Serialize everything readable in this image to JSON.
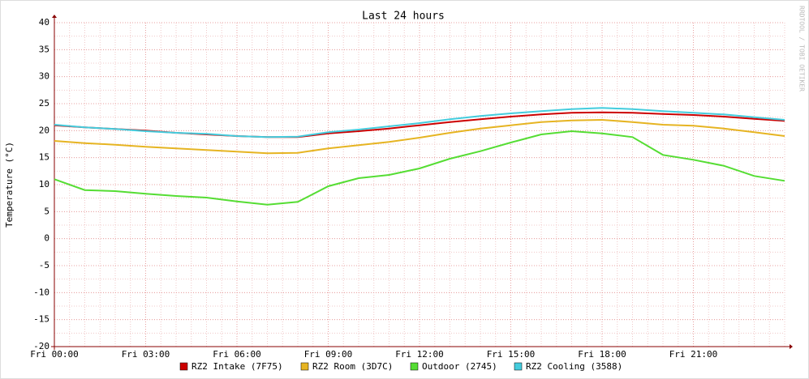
{
  "chart_data": {
    "type": "line",
    "title": "Last 24 hours",
    "ylabel": "Temperature (°C)",
    "watermark": "RRDTOOL / TOBI OETIKER",
    "x": [
      0,
      1,
      2,
      3,
      4,
      5,
      6,
      7,
      8,
      9,
      10,
      11,
      12,
      13,
      14,
      15,
      16,
      17,
      18,
      19,
      20,
      21,
      22,
      23,
      24
    ],
    "xlim": [
      0,
      24
    ],
    "xticks": [
      {
        "value": 0,
        "label": "Fri 00:00"
      },
      {
        "value": 3,
        "label": "Fri 03:00"
      },
      {
        "value": 6,
        "label": "Fri 06:00"
      },
      {
        "value": 9,
        "label": "Fri 09:00"
      },
      {
        "value": 12,
        "label": "Fri 12:00"
      },
      {
        "value": 15,
        "label": "Fri 15:00"
      },
      {
        "value": 18,
        "label": "Fri 18:00"
      },
      {
        "value": 21,
        "label": "Fri 21:00"
      }
    ],
    "ylim": [
      -20,
      40
    ],
    "yticks": [
      -20,
      -15,
      -10,
      -5,
      0,
      5,
      10,
      15,
      20,
      25,
      30,
      35,
      40
    ],
    "grid": true,
    "series": [
      {
        "name": "RZ2 Intake (7F75)",
        "color": "#cc0000",
        "values": [
          21.0,
          20.6,
          20.3,
          20.0,
          19.6,
          19.3,
          19.0,
          18.8,
          18.8,
          19.5,
          19.9,
          20.4,
          21.0,
          21.6,
          22.1,
          22.6,
          23.0,
          23.3,
          23.4,
          23.3,
          23.1,
          22.9,
          22.6,
          22.2,
          21.8
        ]
      },
      {
        "name": "RZ2 Room (3D7C)",
        "color": "#e6b422",
        "values": [
          18.1,
          17.7,
          17.4,
          17.0,
          16.7,
          16.4,
          16.1,
          15.8,
          15.9,
          16.7,
          17.3,
          17.9,
          18.7,
          19.6,
          20.4,
          21.0,
          21.6,
          21.9,
          22.0,
          21.6,
          21.1,
          20.9,
          20.4,
          19.7,
          19.0
        ]
      },
      {
        "name": "Outdoor (2745)",
        "color": "#55dd33",
        "values": [
          11.0,
          9.0,
          8.8,
          8.3,
          7.9,
          7.6,
          6.9,
          6.3,
          6.8,
          9.7,
          11.2,
          11.8,
          13.0,
          14.8,
          16.2,
          17.8,
          19.3,
          19.9,
          19.5,
          18.8,
          15.5,
          14.6,
          13.5,
          11.6,
          10.7
        ]
      },
      {
        "name": "RZ2 Cooling (3588)",
        "color": "#44ccdd",
        "values": [
          21.1,
          20.6,
          20.3,
          19.9,
          19.6,
          19.4,
          19.0,
          18.8,
          18.9,
          19.7,
          20.2,
          20.8,
          21.4,
          22.1,
          22.7,
          23.2,
          23.6,
          24.0,
          24.2,
          24.0,
          23.6,
          23.3,
          23.0,
          22.5,
          22.0
        ]
      }
    ]
  }
}
